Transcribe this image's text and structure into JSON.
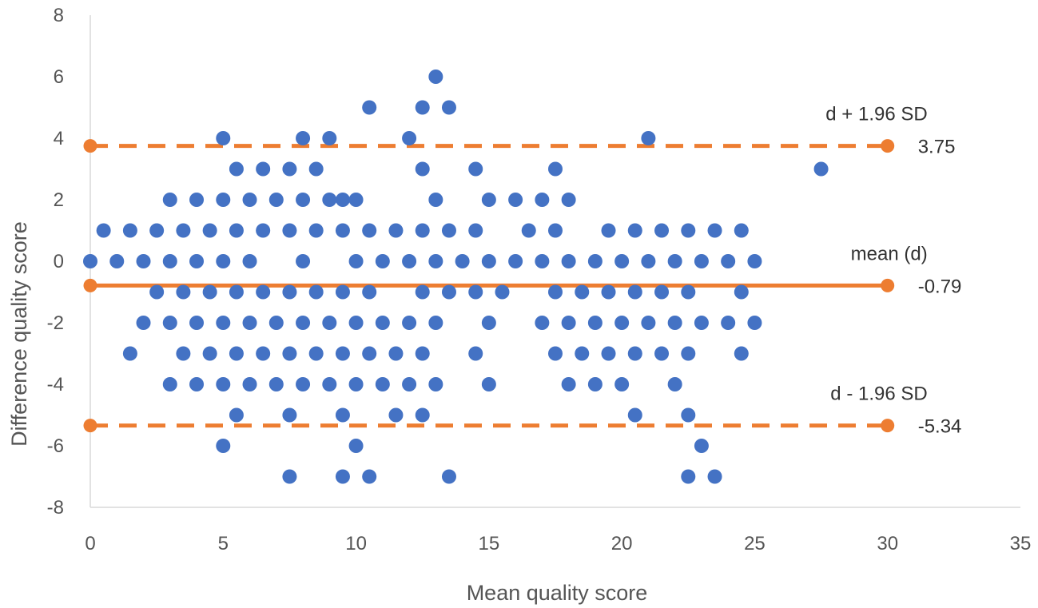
{
  "chart_data": {
    "type": "scatter",
    "xlabel": "Mean quality score",
    "ylabel": "Difference quality score",
    "xlim": [
      0,
      35
    ],
    "ylim": [
      -8,
      8
    ],
    "xticks": [
      0,
      5,
      10,
      15,
      20,
      25,
      30,
      35
    ],
    "yticks": [
      -8,
      -6,
      -4,
      -2,
      0,
      2,
      4,
      6,
      8
    ],
    "grid": false,
    "marker_color": "#4472C4",
    "line_color": "#ED7D31",
    "points": [
      [
        0,
        0
      ],
      [
        0.5,
        1
      ],
      [
        1,
        0
      ],
      [
        1.5,
        1
      ],
      [
        1.5,
        -3
      ],
      [
        2,
        0
      ],
      [
        2,
        -2
      ],
      [
        2.5,
        1
      ],
      [
        2.5,
        -1
      ],
      [
        3,
        2
      ],
      [
        3,
        0
      ],
      [
        3,
        -2
      ],
      [
        3,
        -4
      ],
      [
        3.5,
        1
      ],
      [
        3.5,
        -1
      ],
      [
        3.5,
        -3
      ],
      [
        4,
        2
      ],
      [
        4,
        0
      ],
      [
        4,
        -2
      ],
      [
        4,
        -4
      ],
      [
        4.5,
        1
      ],
      [
        4.5,
        -1
      ],
      [
        4.5,
        -3
      ],
      [
        5,
        4
      ],
      [
        5,
        2
      ],
      [
        5,
        0
      ],
      [
        5,
        -2
      ],
      [
        5,
        -4
      ],
      [
        5,
        -6
      ],
      [
        5.5,
        3
      ],
      [
        5.5,
        1
      ],
      [
        5.5,
        -1
      ],
      [
        5.5,
        -3
      ],
      [
        5.5,
        -5
      ],
      [
        6,
        2
      ],
      [
        6,
        0
      ],
      [
        6,
        -2
      ],
      [
        6,
        -4
      ],
      [
        6.5,
        3
      ],
      [
        6.5,
        1
      ],
      [
        6.5,
        -1
      ],
      [
        6.5,
        -3
      ],
      [
        7,
        2
      ],
      [
        7,
        -2
      ],
      [
        7,
        -4
      ],
      [
        7.5,
        3
      ],
      [
        7.5,
        1
      ],
      [
        7.5,
        -1
      ],
      [
        7.5,
        -3
      ],
      [
        7.5,
        -5
      ],
      [
        7.5,
        -7
      ],
      [
        8,
        4
      ],
      [
        8,
        2
      ],
      [
        8,
        0
      ],
      [
        8,
        -2
      ],
      [
        8,
        -4
      ],
      [
        8.5,
        3
      ],
      [
        8.5,
        1
      ],
      [
        8.5,
        -1
      ],
      [
        8.5,
        -3
      ],
      [
        9,
        4
      ],
      [
        9,
        2
      ],
      [
        9,
        -2
      ],
      [
        9,
        -4
      ],
      [
        9.5,
        2
      ],
      [
        9.5,
        1
      ],
      [
        9.5,
        -1
      ],
      [
        9.5,
        -3
      ],
      [
        9.5,
        -5
      ],
      [
        9.5,
        -7
      ],
      [
        10,
        2
      ],
      [
        10,
        0
      ],
      [
        10,
        -2
      ],
      [
        10,
        -4
      ],
      [
        10,
        -6
      ],
      [
        10.5,
        5
      ],
      [
        10.5,
        1
      ],
      [
        10.5,
        -1
      ],
      [
        10.5,
        -3
      ],
      [
        10.5,
        -7
      ],
      [
        11,
        0
      ],
      [
        11,
        -2
      ],
      [
        11,
        -4
      ],
      [
        11.5,
        1
      ],
      [
        11.5,
        -3
      ],
      [
        11.5,
        -5
      ],
      [
        12,
        4
      ],
      [
        12,
        0
      ],
      [
        12,
        -2
      ],
      [
        12,
        -4
      ],
      [
        12.5,
        5
      ],
      [
        12.5,
        3
      ],
      [
        12.5,
        1
      ],
      [
        12.5,
        -1
      ],
      [
        12.5,
        -3
      ],
      [
        12.5,
        -5
      ],
      [
        13,
        6
      ],
      [
        13,
        2
      ],
      [
        13,
        0
      ],
      [
        13,
        -2
      ],
      [
        13,
        -4
      ],
      [
        13.5,
        5
      ],
      [
        13.5,
        1
      ],
      [
        13.5,
        -1
      ],
      [
        13.5,
        -7
      ],
      [
        14,
        0
      ],
      [
        14.5,
        3
      ],
      [
        14.5,
        1
      ],
      [
        14.5,
        -1
      ],
      [
        14.5,
        -3
      ],
      [
        15,
        2
      ],
      [
        15,
        0
      ],
      [
        15,
        -2
      ],
      [
        15,
        -4
      ],
      [
        15.5,
        -1
      ],
      [
        16,
        2
      ],
      [
        16,
        0
      ],
      [
        16.5,
        1
      ],
      [
        17,
        2
      ],
      [
        17,
        0
      ],
      [
        17,
        -2
      ],
      [
        17.5,
        3
      ],
      [
        17.5,
        1
      ],
      [
        17.5,
        -1
      ],
      [
        17.5,
        -3
      ],
      [
        18,
        2
      ],
      [
        18,
        0
      ],
      [
        18,
        -2
      ],
      [
        18,
        -4
      ],
      [
        18.5,
        -1
      ],
      [
        18.5,
        -3
      ],
      [
        19,
        0
      ],
      [
        19,
        -2
      ],
      [
        19,
        -4
      ],
      [
        19.5,
        1
      ],
      [
        19.5,
        -1
      ],
      [
        19.5,
        -3
      ],
      [
        20,
        0
      ],
      [
        20,
        -2
      ],
      [
        20,
        -4
      ],
      [
        20.5,
        1
      ],
      [
        20.5,
        -1
      ],
      [
        20.5,
        -3
      ],
      [
        20.5,
        -5
      ],
      [
        21,
        4
      ],
      [
        21,
        0
      ],
      [
        21,
        -2
      ],
      [
        21.5,
        1
      ],
      [
        21.5,
        -1
      ],
      [
        21.5,
        -3
      ],
      [
        22,
        0
      ],
      [
        22,
        -2
      ],
      [
        22,
        -4
      ],
      [
        22.5,
        1
      ],
      [
        22.5,
        -1
      ],
      [
        22.5,
        -3
      ],
      [
        22.5,
        -5
      ],
      [
        22.5,
        -7
      ],
      [
        23,
        0
      ],
      [
        23,
        -2
      ],
      [
        23,
        -6
      ],
      [
        23.5,
        1
      ],
      [
        23.5,
        -7
      ],
      [
        24,
        0
      ],
      [
        24,
        -2
      ],
      [
        24.5,
        1
      ],
      [
        24.5,
        -1
      ],
      [
        24.5,
        -3
      ],
      [
        25,
        0
      ],
      [
        25,
        -2
      ],
      [
        27.5,
        3
      ]
    ],
    "reference_lines": [
      {
        "label": "d + 1.96 SD",
        "value": 3.75,
        "value_text": "3.75",
        "style": "dashed"
      },
      {
        "label": "mean (d)",
        "value": -0.79,
        "value_text": "-0.79",
        "style": "solid"
      },
      {
        "label": "d - 1.96 SD",
        "value": -5.34,
        "value_text": "-5.34",
        "style": "dashed"
      }
    ],
    "reference_x_range": [
      0,
      30
    ]
  }
}
